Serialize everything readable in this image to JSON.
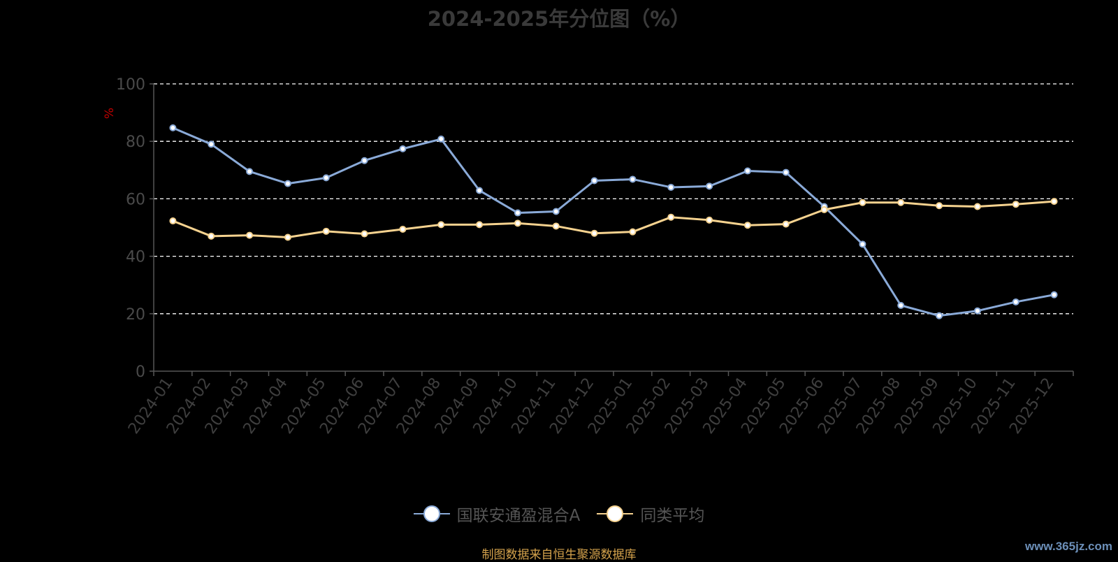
{
  "chart_data": {
    "type": "line",
    "title": "2024-2025年分位图（%）",
    "ylabel": "%",
    "ylim": [
      0,
      100
    ],
    "yticks": [
      0,
      20,
      40,
      60,
      80,
      100
    ],
    "grid": true,
    "legend_position": "bottom",
    "categories": [
      "2024-01",
      "2024-02",
      "2024-03",
      "2024-04",
      "2024-05",
      "2024-06",
      "2024-07",
      "2024-08",
      "2024-09",
      "2024-10",
      "2024-11",
      "2024-12",
      "2025-01",
      "2025-02",
      "2025-03",
      "2025-04",
      "2025-05",
      "2025-06",
      "2025-07",
      "2025-08",
      "2025-09",
      "2025-10",
      "2025-11",
      "2025-12"
    ],
    "series": [
      {
        "name": "国联安通盈混合A",
        "color": "#8aaad8",
        "values": [
          84.7,
          79.0,
          69.5,
          65.3,
          67.3,
          73.3,
          77.4,
          80.8,
          62.9,
          55.1,
          55.6,
          66.3,
          66.8,
          64.0,
          64.4,
          69.7,
          69.2,
          57.3,
          44.2,
          22.9,
          19.3,
          21.0,
          24.1,
          26.6
        ]
      },
      {
        "name": "同类平均",
        "color": "#f5d28f",
        "values": [
          52.3,
          47.0,
          47.3,
          46.6,
          48.7,
          47.8,
          49.4,
          51.0,
          51.0,
          51.5,
          50.5,
          48.0,
          48.5,
          53.6,
          52.6,
          50.8,
          51.2,
          56.2,
          58.7,
          58.7,
          57.6,
          57.3,
          58.1,
          59.1
        ]
      }
    ]
  },
  "source_text": "制图数据来自恒生聚源数据库",
  "watermark_text": "www.365jz.com"
}
